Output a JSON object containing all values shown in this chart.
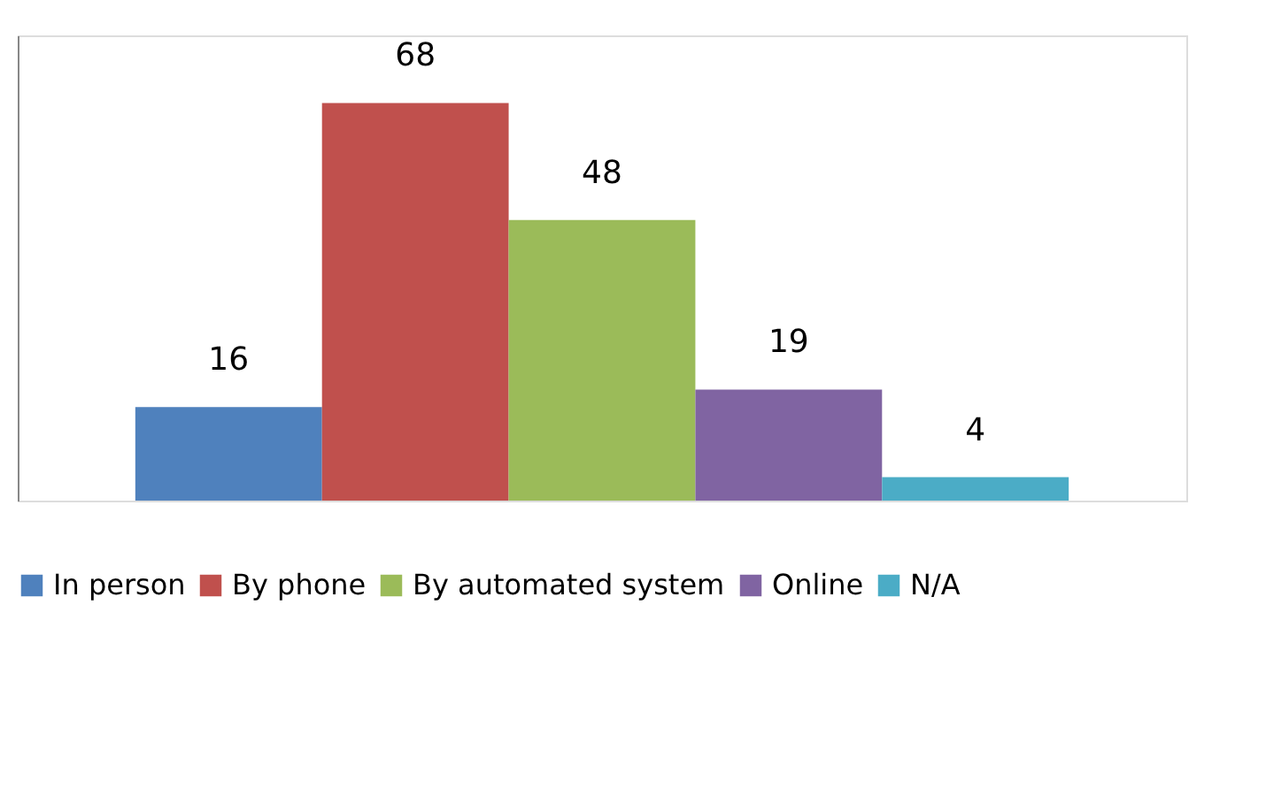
{
  "chart_data": {
    "type": "bar",
    "categories": [
      null
    ],
    "series": [
      {
        "name": "In person",
        "color": "#4f81bd",
        "values": [
          16
        ]
      },
      {
        "name": "By phone",
        "color": "#c0504d",
        "values": [
          68
        ]
      },
      {
        "name": "By automated system",
        "color": "#9bbb59",
        "values": [
          48
        ]
      },
      {
        "name": "Online",
        "color": "#8064a2",
        "values": [
          19
        ]
      },
      {
        "name": "N/A",
        "color": "#4bacc6",
        "values": [
          4
        ]
      }
    ],
    "data_labels": true,
    "legend": "bottom",
    "grid": false,
    "tick_labels": false
  }
}
